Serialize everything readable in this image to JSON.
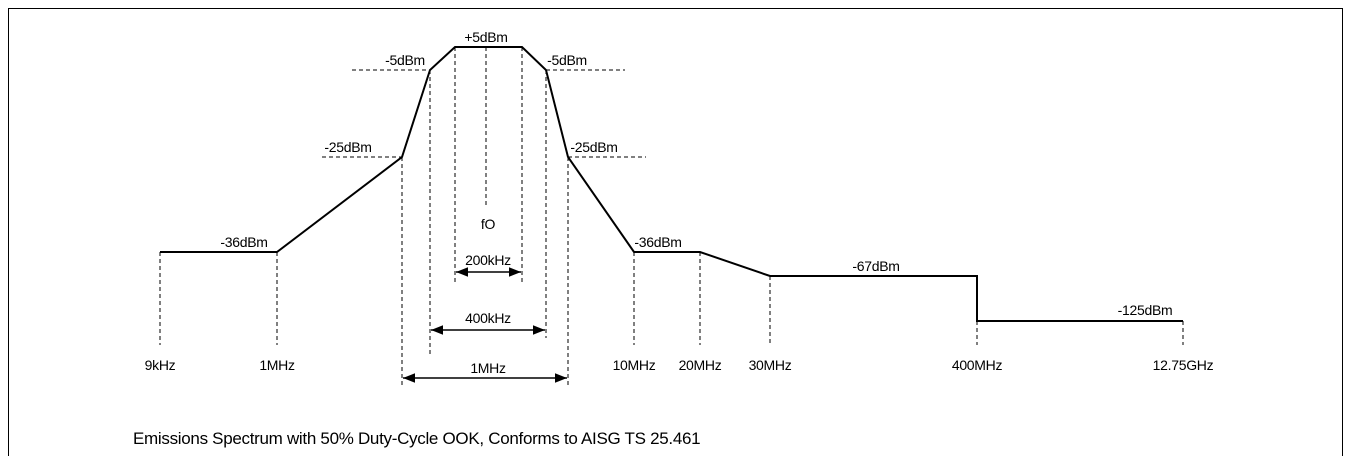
{
  "levels": [
    "+5dBm",
    "-5dBm",
    "-5dBm",
    "-25dBm",
    "-25dBm",
    "-36dBm",
    "-36dBm",
    "-67dBm",
    "-125dBm"
  ],
  "center": "fO",
  "spans": [
    "200kHz",
    "400kHz",
    "1MHz"
  ],
  "frequencies": [
    "9kHz",
    "1MHz",
    "10MHz",
    "20MHz",
    "30MHz",
    "400MHz",
    "12.75GHz"
  ],
  "caption": "Emissions Spectrum with 50% Duty-Cycle OOK, Conforms to AISG TS 25.461"
}
